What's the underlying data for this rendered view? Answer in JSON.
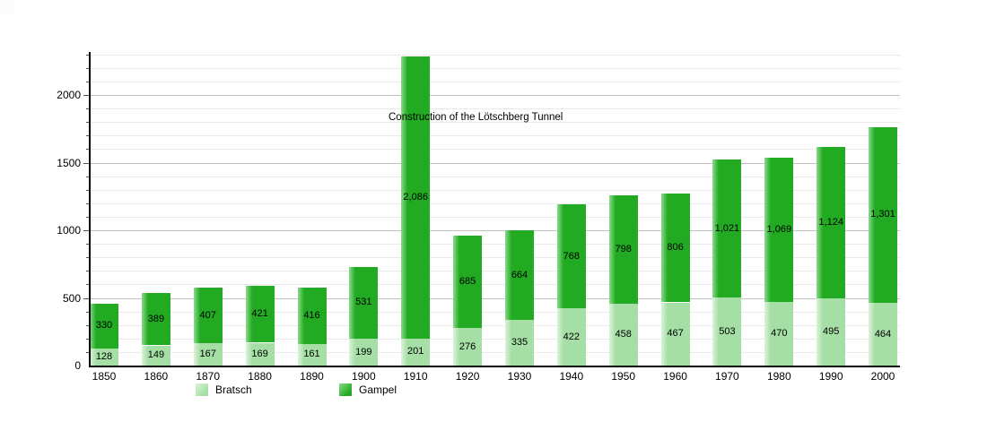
{
  "page": {
    "background": "#ffffff"
  },
  "chart_data": {
    "type": "bar",
    "stacked": true,
    "categories": [
      "1850",
      "1860",
      "1870",
      "1880",
      "1890",
      "1900",
      "1910",
      "1920",
      "1930",
      "1940",
      "1950",
      "1960",
      "1970",
      "1980",
      "1990",
      "2000"
    ],
    "series": [
      {
        "name": "Bratsch",
        "color": "#a5dfa5",
        "edge_color": "#dbf3db",
        "values": [
          128,
          149,
          167,
          169,
          161,
          199,
          201,
          276,
          335,
          422,
          458,
          467,
          503,
          470,
          495,
          464
        ]
      },
      {
        "name": "Gampel",
        "color": "#22ab22",
        "edge_color": "#8ada8a",
        "values": [
          330,
          389,
          407,
          421,
          416,
          531,
          2086,
          685,
          664,
          768,
          798,
          806,
          1021,
          1069,
          1124,
          1301
        ]
      }
    ],
    "annotation": "Construction of the Lötschberg Tunnel",
    "xlabel": "",
    "ylabel": "",
    "y_ticks": [
      0,
      500,
      1000,
      1500,
      2000
    ],
    "y_minor_step": 100,
    "y_top_gridline": 2300,
    "ylim": [
      0,
      2325
    ],
    "grid": "on",
    "legend_position": "bottom",
    "colors": {
      "minor_grid": "#e9e9e9",
      "major_grid": "#c2c2c2",
      "axis": "#000000",
      "label_text": "#000000"
    }
  }
}
